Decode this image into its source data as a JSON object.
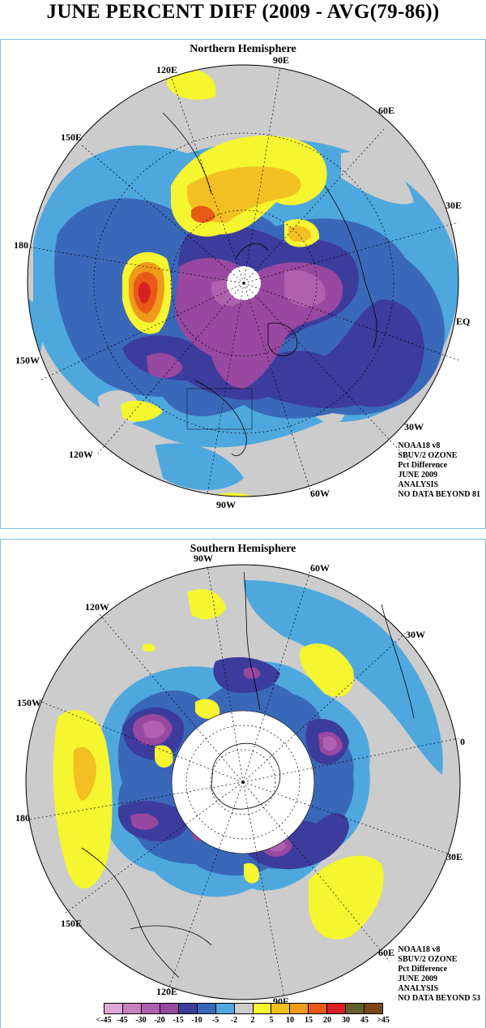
{
  "title": "JUNE PERCENT DIFF (2009 - AVG(79-86))",
  "colors": {
    "land_bg": "#cccccc",
    "c_m45": "#e0a8d8",
    "c_m30": "#b060b0",
    "c_m20": "#a050a8",
    "c_m15": "#3c3c9c",
    "c_m10": "#3a68b8",
    "c_m5": "#4ea8de",
    "c_m2": "#cccccc",
    "c_p2": "#f5f530",
    "c_p5": "#f2c020",
    "c_p10": "#f09a1c",
    "c_p15": "#e85a18",
    "c_p20": "#d82020",
    "c_p30": "#606028",
    "c_p45": "#7a4818"
  },
  "north": {
    "title": "Northern Hemisphere",
    "labels": {
      "lon_90e": "90E",
      "lon_60e": "60E",
      "lon_30e": "30E",
      "lon_eq": "EQ",
      "lon_30w": "30W",
      "lon_60w": "60W",
      "lon_90w": "90W",
      "lon_120w": "120W",
      "lon_150w": "150W",
      "lon_180": "180",
      "lon_150e": "150E",
      "lon_120e": "120E"
    },
    "info": [
      "NOAA18 v8",
      "SBUV/2 OZONE",
      "Pct Difference",
      "JUNE 2009",
      "ANALYSIS",
      "NO DATA BEYOND  81"
    ]
  },
  "south": {
    "title": "Southern Hemisphere",
    "labels": {
      "lon_90w": "90W",
      "lon_60w": "60W",
      "lon_30w": "30W",
      "lon_0": "0",
      "lon_30e": "30E",
      "lon_60e": "60E",
      "lon_90e": "90E",
      "lon_120e": "120E",
      "lon_150e": "150E",
      "lon_180": "180",
      "lon_150w": "150W",
      "lon_120w": "120W"
    },
    "info": [
      "NOAA18 v8",
      "SBUV/2 OZONE",
      "Pct Difference",
      "JUNE 2009",
      "ANALYSIS",
      "NO DATA BEYOND  53"
    ]
  },
  "legend": {
    "labels": [
      "<-45",
      "-45",
      "-30",
      "-20",
      "-15",
      "-10",
      "-5",
      "-2",
      "2",
      "5",
      "10",
      "15",
      "20",
      "30",
      "45",
      ">45"
    ],
    "colors": [
      "#e0a8d8",
      "#c880c0",
      "#b060b0",
      "#9848a0",
      "#3c3c9c",
      "#3a68b8",
      "#4ea8de",
      "#cccccc",
      "#f5f530",
      "#f2c020",
      "#f09a1c",
      "#e85a18",
      "#d82020",
      "#606028",
      "#7a4818"
    ]
  }
}
